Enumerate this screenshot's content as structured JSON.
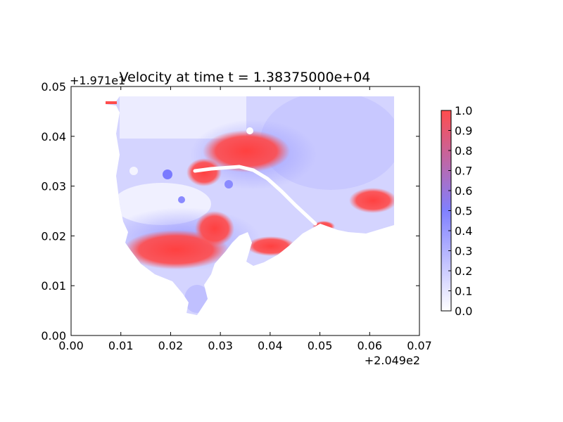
{
  "chart_data": {
    "type": "heatmap",
    "title": "Velocity at time t = 1.38375000e+04",
    "xlabel": "",
    "ylabel": "",
    "xlim": [
      0.0,
      0.07
    ],
    "ylim": [
      0.0,
      0.05
    ],
    "x_ticks": [
      "0.00",
      "0.01",
      "0.02",
      "0.03",
      "0.04",
      "0.05",
      "0.06",
      "0.07"
    ],
    "y_ticks": [
      "0.00",
      "0.01",
      "0.02",
      "0.03",
      "0.04",
      "0.05"
    ],
    "x_offset_label": "+2.049e2",
    "y_offset_label": "+1.971e1",
    "colorbar": {
      "range": [
        0.0,
        1.0
      ],
      "ticks": [
        "0.0",
        "0.1",
        "0.2",
        "0.3",
        "0.4",
        "0.5",
        "0.6",
        "0.7",
        "0.8",
        "0.9",
        "1.0"
      ],
      "colors": {
        "low": "#ffffff",
        "mid": "#8080ff",
        "high": "#ff4d4d"
      }
    },
    "region_extent": {
      "x": [
        0.007,
        0.065
      ],
      "y": [
        0.0035,
        0.048
      ]
    },
    "grid": false
  }
}
